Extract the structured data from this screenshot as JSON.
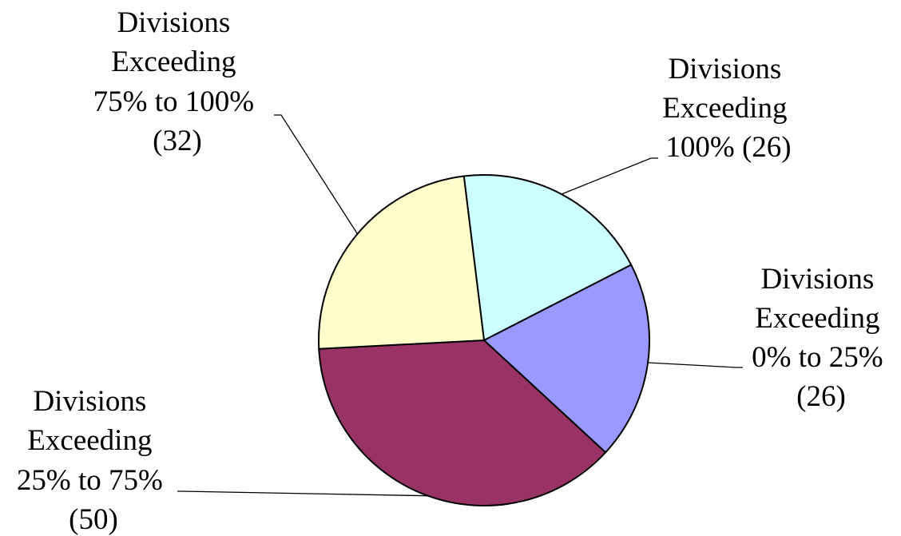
{
  "chart_data": {
    "type": "pie",
    "title": "",
    "slices": [
      {
        "lines": [
          "Divisions",
          "Exceeding",
          "100% (26)"
        ],
        "value": 26,
        "color": "#CCFFFF"
      },
      {
        "lines": [
          "Divisions",
          "Exceeding",
          "0% to 25%",
          "(26)"
        ],
        "value": 26,
        "color": "#9999FF"
      },
      {
        "lines": [
          "Divisions",
          "Exceeding",
          "25% to 75%",
          "(50)"
        ],
        "value": 50,
        "color": "#993366"
      },
      {
        "lines": [
          "Divisions",
          "Exceeding",
          "75% to 100%",
          "(32)"
        ],
        "value": 32,
        "color": "#FFFFCC"
      }
    ]
  }
}
